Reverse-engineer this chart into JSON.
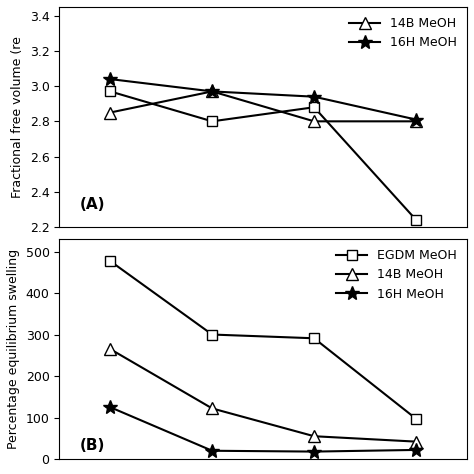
{
  "x_values": [
    1,
    2,
    3,
    4
  ],
  "panel_A": {
    "ylabel": "Fractional free volume (re",
    "ylim": [
      2.2,
      3.45
    ],
    "yticks": [
      2.2,
      2.4,
      2.6,
      2.8,
      3.0,
      3.2,
      3.4
    ],
    "label": "(A)",
    "series": {
      "EGDM MeOH": {
        "y": [
          2.97,
          2.8,
          2.88,
          2.24
        ],
        "marker": "s"
      },
      "14B MeOH": {
        "y": [
          2.85,
          2.97,
          2.8,
          2.8
        ],
        "marker": "^"
      },
      "16H MeOH": {
        "y": [
          3.04,
          2.97,
          2.94,
          2.81
        ],
        "marker": "*"
      }
    }
  },
  "panel_B": {
    "ylabel": "Percentage equilibrium swelling",
    "ylim": [
      0,
      530
    ],
    "yticks": [
      0,
      100,
      200,
      300,
      400,
      500
    ],
    "label": "(B)",
    "series": {
      "EGDM MeOH": {
        "y": [
          477,
          300,
          291,
          97
        ],
        "marker": "s"
      },
      "14B MeOH": {
        "y": [
          265,
          122,
          55,
          42
        ],
        "marker": "^"
      },
      "16H MeOH": {
        "y": [
          125,
          20,
          18,
          22
        ],
        "marker": "*"
      }
    }
  },
  "legend_A": {
    "entries": [
      "14B MeOH",
      "16H MeOH"
    ],
    "markers": [
      "^",
      "*"
    ]
  },
  "legend_B": {
    "entries": [
      "EGDM MeOH",
      "14B MeOH",
      "16H MeOH"
    ],
    "markers": [
      "s",
      "^",
      "*"
    ]
  },
  "line_color": "black",
  "markersize_sq": 7,
  "markersize_tri": 8,
  "markersize_star": 10,
  "linewidth": 1.5,
  "fontsize_label": 9,
  "fontsize_tick": 9,
  "fontsize_legend": 9,
  "fontsize_annot": 11
}
